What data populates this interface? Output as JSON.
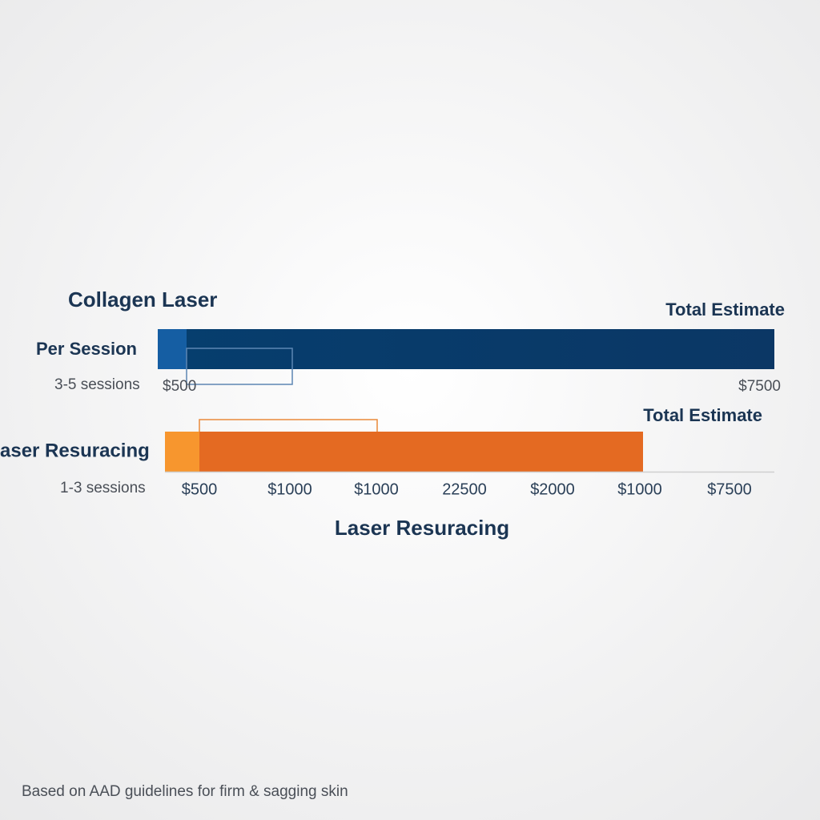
{
  "top_row": {
    "title": "Collagen Laser",
    "total_label": "Total Estimate",
    "row_label": "Per Session",
    "sessions": "3-5 sessions",
    "start_label": "$500",
    "end_label": "$7500"
  },
  "bottom_row": {
    "total_label": "Total Estimate",
    "row_label": "aser Resuracing",
    "sessions": "1-3 sessions"
  },
  "axis_labels": [
    "$500",
    "$1000",
    "$1000",
    "22500",
    "$2000",
    "$1000",
    "$7500"
  ],
  "axis_title": "Laser Resuracing",
  "footer": "Based on AAD guidelines for firm & sagging skin"
}
